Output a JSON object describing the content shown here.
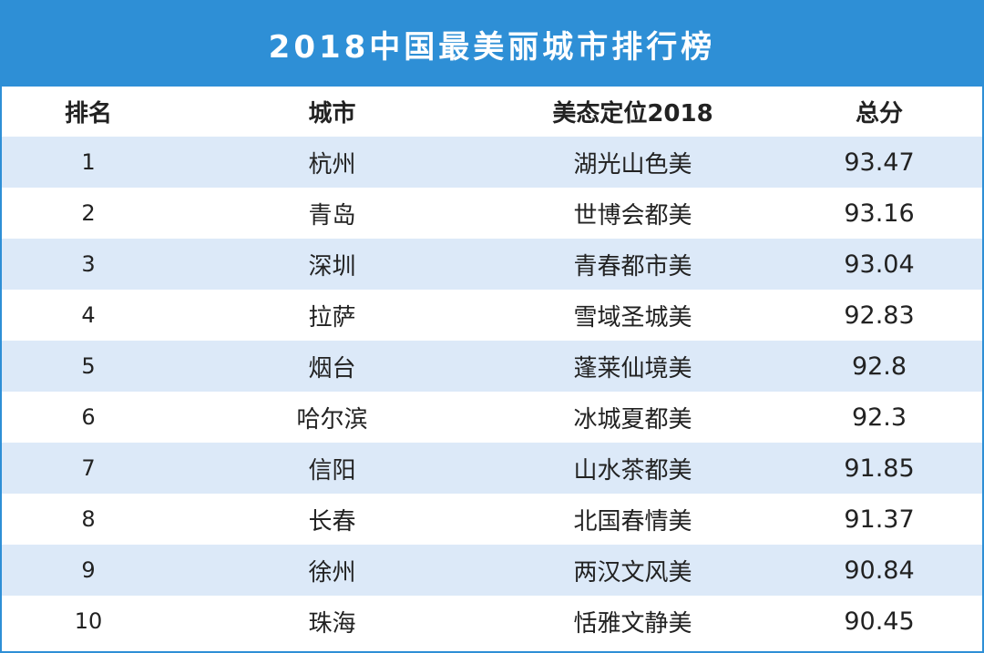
{
  "title": "2018中国最美丽城市排行榜",
  "colors": {
    "header_bg": "#2e8fd6",
    "stripe": "#dce9f8",
    "text": "#222222"
  },
  "chart_data": {
    "type": "table",
    "title": "2018中国最美丽城市排行榜",
    "columns": [
      "排名",
      "城市",
      "美态定位2018",
      "总分"
    ],
    "rows": [
      {
        "rank": "1",
        "city": "杭州",
        "tag": "湖光山色美",
        "score": "93.47"
      },
      {
        "rank": "2",
        "city": "青岛",
        "tag": "世博会都美",
        "score": "93.16"
      },
      {
        "rank": "3",
        "city": "深圳",
        "tag": "青春都市美",
        "score": "93.04"
      },
      {
        "rank": "4",
        "city": "拉萨",
        "tag": "雪域圣城美",
        "score": "92.83"
      },
      {
        "rank": "5",
        "city": "烟台",
        "tag": "蓬莱仙境美",
        "score": "92.8"
      },
      {
        "rank": "6",
        "city": "哈尔滨",
        "tag": "冰城夏都美",
        "score": "92.3"
      },
      {
        "rank": "7",
        "city": "信阳",
        "tag": "山水茶都美",
        "score": "91.85"
      },
      {
        "rank": "8",
        "city": "长春",
        "tag": "北国春情美",
        "score": "91.37"
      },
      {
        "rank": "9",
        "city": "徐州",
        "tag": "两汉文风美",
        "score": "90.84"
      },
      {
        "rank": "10",
        "city": "珠海",
        "tag": "恬雅文静美",
        "score": "90.45"
      }
    ]
  }
}
